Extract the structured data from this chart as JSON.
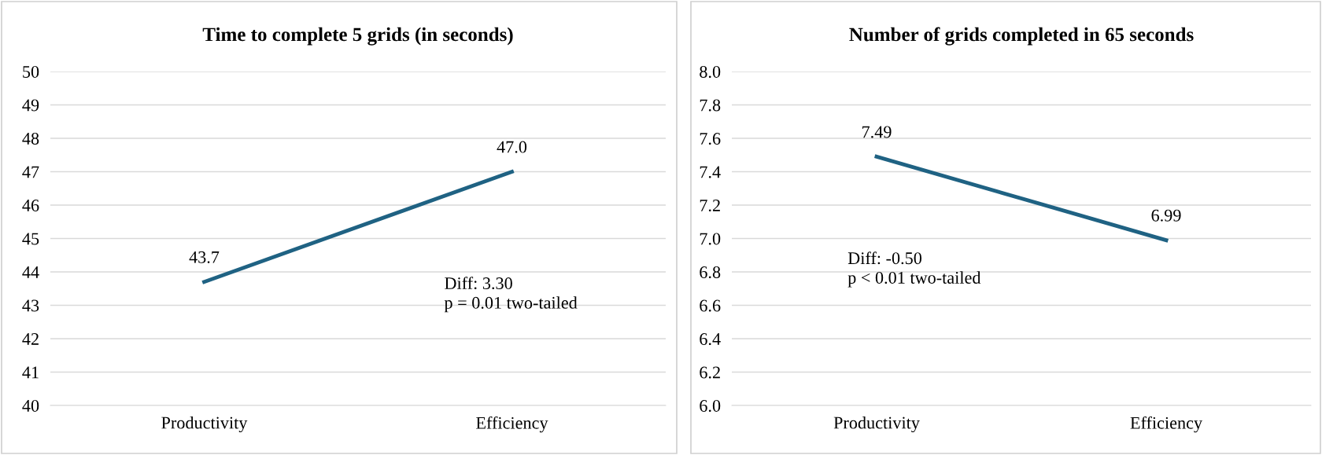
{
  "chart_data": [
    {
      "type": "line",
      "title": "Time to complete 5 grids (in seconds)",
      "categories": [
        "Productivity",
        "Efficiency"
      ],
      "series": [
        {
          "color": "#1f6283",
          "values": [
            43.7,
            47.0
          ],
          "value_labels": [
            "43.7",
            "47.0"
          ]
        }
      ],
      "ylim": [
        40,
        50
      ],
      "yticks": [
        40,
        41,
        42,
        43,
        44,
        45,
        46,
        47,
        48,
        49,
        50
      ],
      "grid": "y",
      "marker": "none",
      "line_style": "solid",
      "annotations": [
        "Diff: 3.30\np = 0.01 two-tailed"
      ]
    },
    {
      "type": "line",
      "title": "Number of grids completed in 65 seconds",
      "categories": [
        "Productivity",
        "Efficiency"
      ],
      "series": [
        {
          "color": "#1f6283",
          "values": [
            7.49,
            6.99
          ],
          "value_labels": [
            "7.49",
            "6.99"
          ]
        }
      ],
      "ylim": [
        6.0,
        8.0
      ],
      "yticks": [
        {
          "value": 6.0,
          "label": "6.0"
        },
        6.2,
        6.4,
        6.6,
        6.8,
        {
          "value": 7.0,
          "label": "7.0"
        },
        7.2,
        7.4,
        7.6,
        7.8,
        {
          "value": 8.0,
          "label": "8.0"
        }
      ],
      "grid": "y",
      "marker": "none",
      "line_style": "solid",
      "annotations": [
        "Diff: -0.50\np < 0.01 two-tailed"
      ]
    }
  ]
}
